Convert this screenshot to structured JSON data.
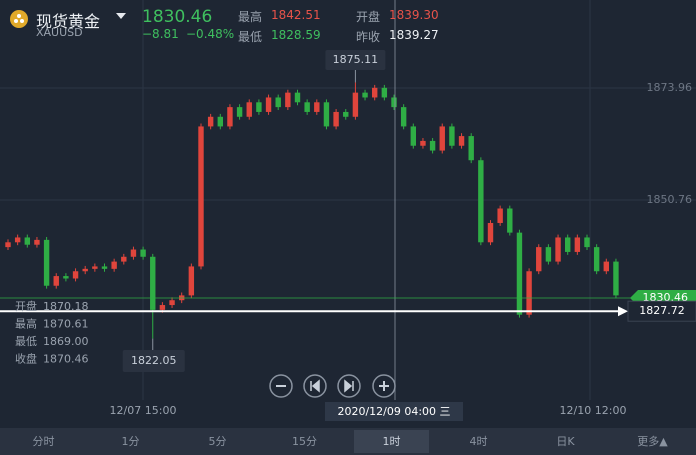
{
  "header": {
    "title": "现货黄金",
    "symbol": "XAUUSD",
    "price": "1830.46",
    "change": "−8.81",
    "change_pct": "−0.48%",
    "stats": [
      {
        "label": "最高",
        "value": "1842.51"
      },
      {
        "label": "开盘",
        "value": "1839.30"
      },
      {
        "label": "最低",
        "value": "1828.59"
      },
      {
        "label": "昨收",
        "value": "1839.27"
      }
    ]
  },
  "ohlc_panel": [
    {
      "label": "开盘",
      "value": "1870.18"
    },
    {
      "label": "最高",
      "value": "1870.61"
    },
    {
      "label": "最低",
      "value": "1869.00"
    },
    {
      "label": "收盘",
      "value": "1870.46"
    }
  ],
  "chart_data": {
    "type": "candlestick",
    "up_color": "#e0453c",
    "down_color": "#2fae45",
    "ylim": [
      1809.33,
      1892.19
    ],
    "yticks": [
      1850.76,
      1873.96
    ],
    "x_labels": [
      "12/07 15:00",
      "12/10 12:00"
    ],
    "crosshair": {
      "time": "2020/12/09 04:00 三",
      "price": 1827.72
    },
    "last_price": 1830.46,
    "high_label": 1875.11,
    "low_label": 1822.05,
    "candles": [
      [
        1841,
        1842.6,
        1840.4,
        1842
      ],
      [
        1842,
        1843.6,
        1841.4,
        1843
      ],
      [
        1843,
        1843.6,
        1840.9,
        1841.5
      ],
      [
        1841.5,
        1843.1,
        1840.9,
        1842.5
      ],
      [
        1842.5,
        1843.1,
        1832.4,
        1833
      ],
      [
        1833,
        1835.6,
        1832.4,
        1835
      ],
      [
        1835,
        1835.6,
        1833.9,
        1834.5
      ],
      [
        1834.5,
        1836.6,
        1833.9,
        1836
      ],
      [
        1836,
        1837.1,
        1835.4,
        1836.5
      ],
      [
        1836.5,
        1837.6,
        1835.9,
        1837
      ],
      [
        1837,
        1837.6,
        1835.9,
        1836.5
      ],
      [
        1836.5,
        1838.6,
        1835.9,
        1838
      ],
      [
        1838,
        1839.6,
        1837.4,
        1839
      ],
      [
        1839,
        1841.1,
        1838.4,
        1840.5
      ],
      [
        1840.5,
        1841.1,
        1838.4,
        1839
      ],
      [
        1839,
        1839.6,
        1822.05,
        1828
      ],
      [
        1828,
        1829.6,
        1827.4,
        1829
      ],
      [
        1829,
        1830.6,
        1828.4,
        1830
      ],
      [
        1830,
        1831.6,
        1829.4,
        1831
      ],
      [
        1831,
        1837.6,
        1830.4,
        1837
      ],
      [
        1837,
        1866.6,
        1836.4,
        1866
      ],
      [
        1866,
        1868.6,
        1865.4,
        1868
      ],
      [
        1868,
        1868.6,
        1865.4,
        1866
      ],
      [
        1866,
        1870.6,
        1865.4,
        1870
      ],
      [
        1870,
        1870.6,
        1867.4,
        1868
      ],
      [
        1868,
        1871.6,
        1867.4,
        1871
      ],
      [
        1871,
        1871.6,
        1868.4,
        1869
      ],
      [
        1869,
        1872.6,
        1868.4,
        1872
      ],
      [
        1872,
        1872.6,
        1869.4,
        1870
      ],
      [
        1870,
        1873.6,
        1869.4,
        1873
      ],
      [
        1873,
        1873.6,
        1870.4,
        1871
      ],
      [
        1871,
        1871.6,
        1868.4,
        1869
      ],
      [
        1869,
        1871.6,
        1868.4,
        1871
      ],
      [
        1871,
        1871.6,
        1865.4,
        1866
      ],
      [
        1866,
        1869.6,
        1865.4,
        1869
      ],
      [
        1869,
        1869.6,
        1867.4,
        1868
      ],
      [
        1868,
        1875.11,
        1867.4,
        1873
      ],
      [
        1873,
        1873.6,
        1871.4,
        1872
      ],
      [
        1872,
        1874.6,
        1871.4,
        1874
      ],
      [
        1874,
        1874.6,
        1871.4,
        1872
      ],
      [
        1872,
        1872.6,
        1869.4,
        1870
      ],
      [
        1870,
        1870.6,
        1865.4,
        1866
      ],
      [
        1866,
        1866.6,
        1861.4,
        1862
      ],
      [
        1862,
        1863.6,
        1861.4,
        1863
      ],
      [
        1863,
        1863.6,
        1860.4,
        1861
      ],
      [
        1861,
        1866.6,
        1860.4,
        1866
      ],
      [
        1866,
        1866.6,
        1861.4,
        1862
      ],
      [
        1862,
        1864.6,
        1861.4,
        1864
      ],
      [
        1864,
        1864.6,
        1858.4,
        1859
      ],
      [
        1859,
        1859.6,
        1841.4,
        1842
      ],
      [
        1842,
        1846.6,
        1841.4,
        1846
      ],
      [
        1846,
        1849.6,
        1845.4,
        1849
      ],
      [
        1849,
        1849.6,
        1843.4,
        1844
      ],
      [
        1844,
        1844.6,
        1826.4,
        1827
      ],
      [
        1827,
        1836.6,
        1826.4,
        1836
      ],
      [
        1836,
        1841.6,
        1835.4,
        1841
      ],
      [
        1841,
        1841.6,
        1837.4,
        1838
      ],
      [
        1838,
        1843.6,
        1837.4,
        1843
      ],
      [
        1843,
        1843.6,
        1839.4,
        1840
      ],
      [
        1840,
        1843.6,
        1839.4,
        1843
      ],
      [
        1843,
        1843.6,
        1840.4,
        1841
      ],
      [
        1841,
        1841.6,
        1835.4,
        1836
      ],
      [
        1836,
        1838.6,
        1835.4,
        1838
      ],
      [
        1838,
        1838.6,
        1830.4,
        1831
      ]
    ]
  },
  "tabs": [
    "分时",
    "1分",
    "5分",
    "15分",
    "1时",
    "4时",
    "日K",
    "更多▲"
  ],
  "active_tab": 4
}
